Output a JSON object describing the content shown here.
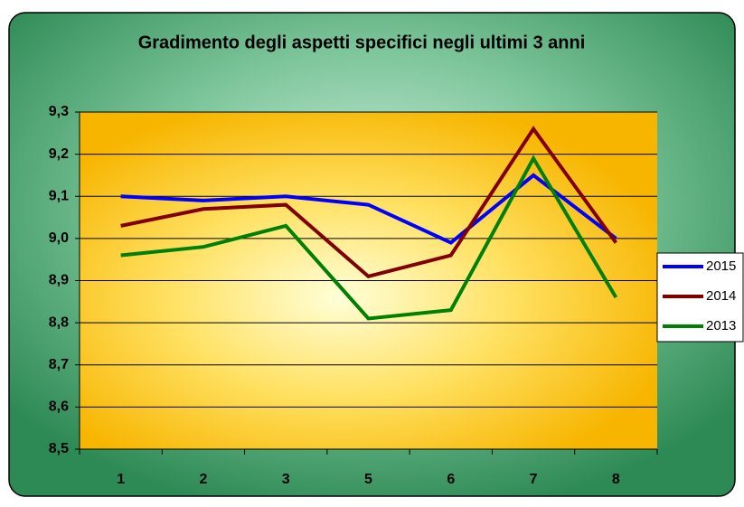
{
  "chart_data": {
    "type": "line",
    "title": "Gradimento degli aspetti specifici negli ultimi 3 anni",
    "categories": [
      "1",
      "2",
      "3",
      "5",
      "6",
      "7",
      "8"
    ],
    "series": [
      {
        "name": "2015",
        "color": "#0000ff",
        "values": [
          9.1,
          9.09,
          9.1,
          9.08,
          8.99,
          9.15,
          9.0
        ]
      },
      {
        "name": "2014",
        "color": "#800000",
        "values": [
          9.03,
          9.07,
          9.08,
          8.91,
          8.96,
          9.26,
          8.99
        ]
      },
      {
        "name": "2013",
        "color": "#008000",
        "values": [
          8.96,
          8.98,
          9.03,
          8.81,
          8.83,
          9.19,
          8.86
        ]
      }
    ],
    "ylim": [
      8.5,
      9.3
    ],
    "yticks": [
      {
        "value": 8.5,
        "label": "8,5"
      },
      {
        "value": 8.6,
        "label": "8,6"
      },
      {
        "value": 8.7,
        "label": "8,7"
      },
      {
        "value": 8.8,
        "label": "8,8"
      },
      {
        "value": 8.9,
        "label": "8,9"
      },
      {
        "value": 9.0,
        "label": "9,0"
      },
      {
        "value": 9.1,
        "label": "9,1"
      },
      {
        "value": 9.2,
        "label": "9,2"
      },
      {
        "value": 9.3,
        "label": "9,3"
      }
    ],
    "grid": true,
    "legend": "right"
  }
}
